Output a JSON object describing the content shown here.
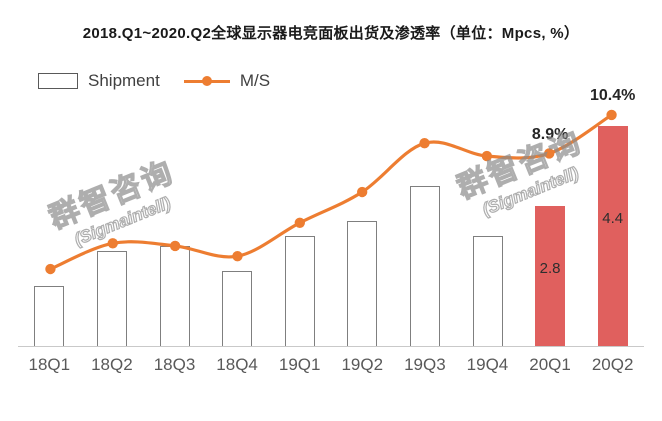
{
  "title": "2018.Q1~2020.Q2全球显示器电竞面板出货及渗透率（单位：Mpcs, %）",
  "legend": {
    "shipment": "Shipment",
    "ms": "M/S"
  },
  "watermark": {
    "line1": "群智咨询",
    "line2": "(Sigmaintell)"
  },
  "colors": {
    "line": "#ED7D31",
    "highlight_bar": "#E0605E",
    "bar_fill": "#FFFFFF",
    "bar_border": "#7F7F7F",
    "axis": "#C9C9C9",
    "text": "#404040"
  },
  "chart_data": {
    "type": "bar+line",
    "title": "2018.Q1~2020.Q2全球显示器电竞面板出货及渗透率（单位：Mpcs, %）",
    "unit": "Mpcs, %",
    "categories": [
      "18Q1",
      "18Q2",
      "18Q3",
      "18Q4",
      "19Q1",
      "19Q2",
      "19Q3",
      "19Q4",
      "20Q1",
      "20Q2"
    ],
    "series": [
      {
        "name": "Shipment",
        "type": "bar",
        "values": [
          1.2,
          1.9,
          2.0,
          1.5,
          2.2,
          2.5,
          3.2,
          2.2,
          2.8,
          4.4
        ],
        "data_labels": [
          "",
          "",
          "",
          "",
          "",
          "",
          "",
          "",
          "2.8",
          "4.4"
        ],
        "highlighted": [
          false,
          false,
          false,
          false,
          false,
          false,
          false,
          false,
          true,
          true
        ]
      },
      {
        "name": "M/S",
        "type": "line",
        "values": [
          4.4,
          5.4,
          5.3,
          4.9,
          6.2,
          7.4,
          9.3,
          8.8,
          8.9,
          10.4
        ],
        "data_labels": [
          "",
          "",
          "",
          "",
          "",
          "",
          "",
          "",
          "8.9%",
          "10.4%"
        ]
      }
    ],
    "bar_axis": {
      "min": 0,
      "max": 5
    },
    "line_axis": {
      "min": 1.4,
      "max": 11.1
    },
    "legend_position": "top-left",
    "grid": false
  }
}
